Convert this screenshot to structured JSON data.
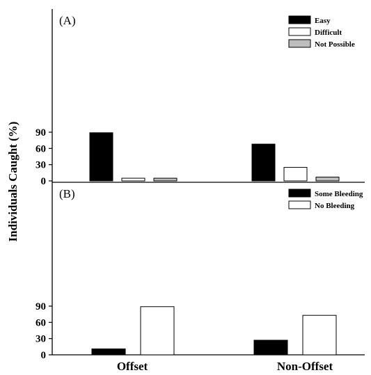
{
  "chart_data": {
    "type": "bar",
    "ylabel": "Individuals Caught (%)",
    "categories": [
      "Offset",
      "Non-Offset"
    ],
    "panels": [
      {
        "label": "(A)",
        "ylim": [
          0,
          100
        ],
        "yticks": [
          0,
          30,
          60,
          90
        ],
        "series": [
          {
            "name": "Easy",
            "color": "#000000",
            "values": [
              89,
              68
            ]
          },
          {
            "name": "Difficult",
            "color": "#ffffff",
            "values": [
              5,
              25
            ]
          },
          {
            "name": "Not Possible",
            "color": "#bdbdbd",
            "values": [
              5,
              7
            ]
          }
        ],
        "legend_position": "top-right"
      },
      {
        "label": "(B)",
        "ylim": [
          0,
          100
        ],
        "yticks": [
          0,
          30,
          60,
          90
        ],
        "series": [
          {
            "name": "Some Bleeding",
            "color": "#000000",
            "values": [
              11,
              27
            ]
          },
          {
            "name": "No Bleeding",
            "color": "#ffffff",
            "values": [
              89,
              73
            ]
          }
        ],
        "legend_position": "top-right"
      }
    ],
    "grid": false
  }
}
